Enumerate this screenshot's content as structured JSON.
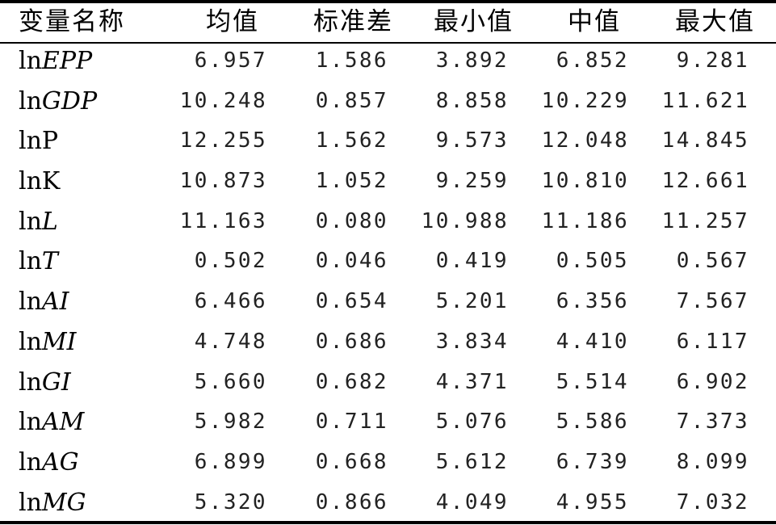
{
  "table": {
    "headers": [
      "变量名称",
      "均值",
      "标准差",
      "最小值",
      "中值",
      "最大值"
    ],
    "rows": [
      {
        "var_prefix": "ln",
        "var_symbol": "EPP",
        "symbol_italic": true,
        "mean": "6.957",
        "std": "1.586",
        "min": "3.892",
        "median": "6.852",
        "max": "9.281"
      },
      {
        "var_prefix": "ln",
        "var_symbol": "GDP",
        "symbol_italic": true,
        "mean": "10.248",
        "std": "0.857",
        "min": "8.858",
        "median": "10.229",
        "max": "11.621"
      },
      {
        "var_prefix": "ln",
        "var_symbol": "P",
        "symbol_italic": false,
        "mean": "12.255",
        "std": "1.562",
        "min": "9.573",
        "median": "12.048",
        "max": "14.845"
      },
      {
        "var_prefix": "ln",
        "var_symbol": "K",
        "symbol_italic": false,
        "mean": "10.873",
        "std": "1.052",
        "min": "9.259",
        "median": "10.810",
        "max": "12.661"
      },
      {
        "var_prefix": "ln",
        "var_symbol": "L",
        "symbol_italic": true,
        "mean": "11.163",
        "std": "0.080",
        "min": "10.988",
        "median": "11.186",
        "max": "11.257"
      },
      {
        "var_prefix": "ln",
        "var_symbol": "T",
        "symbol_italic": true,
        "mean": "0.502",
        "std": "0.046",
        "min": "0.419",
        "median": "0.505",
        "max": "0.567"
      },
      {
        "var_prefix": "ln",
        "var_symbol": "AI",
        "symbol_italic": true,
        "mean": "6.466",
        "std": "0.654",
        "min": "5.201",
        "median": "6.356",
        "max": "7.567"
      },
      {
        "var_prefix": "ln",
        "var_symbol": "MI",
        "symbol_italic": true,
        "mean": "4.748",
        "std": "0.686",
        "min": "3.834",
        "median": "4.410",
        "max": "6.117"
      },
      {
        "var_prefix": "ln",
        "var_symbol": "GI",
        "symbol_italic": true,
        "mean": "5.660",
        "std": "0.682",
        "min": "4.371",
        "median": "5.514",
        "max": "6.902"
      },
      {
        "var_prefix": "ln",
        "var_symbol": "AM",
        "symbol_italic": true,
        "mean": "5.982",
        "std": "0.711",
        "min": "5.076",
        "median": "5.586",
        "max": "7.373"
      },
      {
        "var_prefix": "ln",
        "var_symbol": "AG",
        "symbol_italic": true,
        "mean": "6.899",
        "std": "0.668",
        "min": "5.612",
        "median": "6.739",
        "max": "8.099"
      },
      {
        "var_prefix": "ln",
        "var_symbol": "MG",
        "symbol_italic": true,
        "mean": "5.320",
        "std": "0.866",
        "min": "4.049",
        "median": "4.955",
        "max": "7.032"
      }
    ]
  }
}
